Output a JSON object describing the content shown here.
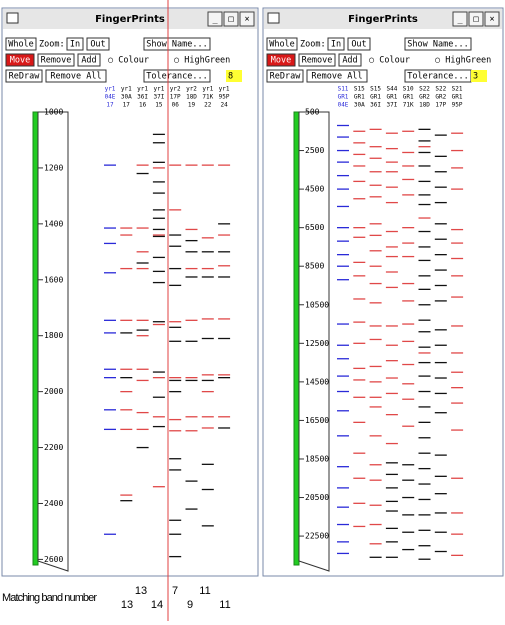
{
  "windows": [
    {
      "title": "FingerPrints",
      "title_buttons": [
        "_",
        "□",
        "×"
      ],
      "toolbar": {
        "whole": "Whole",
        "zoom": "Zoom:",
        "in": "In",
        "out": "Out",
        "show_name": "Show Name...",
        "move": "Move",
        "remove": "Remove",
        "add": "Add",
        "colour": "○ Colour",
        "highgreen": "○ HighGreen",
        "redraw": "ReDraw",
        "remove_all": "Remove All",
        "tolerance": "Tolerance...",
        "tolerance_value": "8"
      },
      "scale": {
        "lim": [
          1000,
          2620
        ],
        "ticks": [
          1000,
          1200,
          1400,
          1600,
          1800,
          2000,
          2200,
          2400,
          2600
        ]
      },
      "lanes": [
        {
          "header": [
            "yr1",
            "04E",
            "17"
          ],
          "blue": [
            1190,
            1415,
            1470,
            1575,
            1745,
            1790,
            1920,
            1950,
            2065,
            2135,
            2510
          ],
          "red": [],
          "black": []
        },
        {
          "header": [
            "yr1",
            "30A",
            "17"
          ],
          "blue": [],
          "red": [
            1415,
            1440,
            1560,
            1745,
            1920,
            2000,
            2065,
            2135,
            2370
          ],
          "black": [
            1790,
            1950,
            2390
          ]
        },
        {
          "header": [
            "yr1",
            "36I",
            "16"
          ],
          "blue": [],
          "red": [
            1190,
            1415,
            1500,
            1560,
            1745,
            1800,
            1920,
            1960,
            2075,
            2135
          ],
          "black": [
            1220,
            1540,
            1780,
            2200
          ]
        },
        {
          "header": [
            "yr1",
            "37I",
            "15"
          ],
          "blue": [],
          "red": [
            1200,
            1440,
            1760,
            1950,
            2090,
            2340
          ],
          "black": [
            1080,
            1110,
            1180,
            1250,
            1290,
            1350,
            1380,
            1420,
            1445,
            1520,
            1570,
            1610,
            1750,
            1930,
            2020,
            2125
          ]
        },
        {
          "header": [
            "yr2",
            "17P",
            "06"
          ],
          "blue": [],
          "red": [
            1190,
            1350,
            1750,
            1950,
            2100,
            2140
          ],
          "black": [
            1440,
            1480,
            1560,
            1620,
            1770,
            1820,
            1960,
            2000,
            2240,
            2280,
            2460,
            2510,
            2590
          ]
        },
        {
          "header": [
            "yr2",
            "18D",
            "19"
          ],
          "blue": [],
          "red": [
            1190,
            1420,
            1560,
            1745,
            1950,
            2090,
            2140
          ],
          "black": [
            1460,
            1500,
            1590,
            1820,
            1960,
            2320,
            2420
          ]
        },
        {
          "header": [
            "yr1",
            "71K",
            "22"
          ],
          "blue": [],
          "red": [
            1190,
            1450,
            1560,
            1740,
            1940,
            2000,
            2090,
            2130
          ],
          "black": [
            1500,
            1590,
            1810,
            1960,
            2260,
            2350,
            2480
          ]
        },
        {
          "header": [
            "yr1",
            "95P",
            "24"
          ],
          "blue": [],
          "red": [
            1190,
            1440,
            1550,
            1740,
            1940,
            2090
          ],
          "black": [
            1400,
            1500,
            1590,
            1810,
            1950,
            2130
          ]
        }
      ]
    },
    {
      "title": "FingerPrints",
      "title_buttons": [
        "_",
        "□",
        "×"
      ],
      "toolbar": {
        "whole": "Whole",
        "zoom": "Zoom:",
        "in": "In",
        "out": "Out",
        "show_name": "Show Name...",
        "move": "Move",
        "remove": "Remove",
        "add": "Add",
        "colour": "○ Colour",
        "highgreen": "○ HighGreen",
        "redraw": "ReDraw",
        "remove_all": "Remove All",
        "tolerance": "Tolerance...",
        "tolerance_value": "3"
      },
      "scale": {
        "lim": [
          500,
          24000
        ],
        "ticks": [
          500,
          2500,
          4500,
          6500,
          8500,
          10500,
          12500,
          14500,
          16500,
          18500,
          20500,
          22500
        ]
      },
      "lanes": [
        {
          "header": [
            "S11",
            "GR1",
            "04E"
          ],
          "blue": [
            1200,
            1800,
            2500,
            3100,
            3800,
            4500,
            5400,
            6500,
            7200,
            7900,
            8500,
            9200,
            11500,
            12600,
            13300,
            14200,
            15000,
            16000,
            17300,
            18900,
            20000,
            21000,
            21900,
            22800,
            23400
          ],
          "red": [],
          "black": []
        },
        {
          "header": [
            "S15",
            "GR1",
            "30A"
          ],
          "blue": [],
          "red": [
            1500,
            2100,
            2700,
            3300,
            4100,
            5000,
            6500,
            7000,
            8300,
            9000,
            10200,
            11400,
            12500,
            13800,
            14400,
            15300,
            16600,
            18200,
            19500,
            20800,
            22000
          ],
          "black": []
        },
        {
          "header": [
            "S15",
            "GR1",
            "36I"
          ],
          "blue": [],
          "red": [
            1400,
            2300,
            2900,
            3600,
            4300,
            4900,
            6300,
            6900,
            7700,
            8500,
            9400,
            10400,
            11600,
            12300,
            13700,
            14500,
            15300,
            15800,
            17300,
            18800,
            19600,
            20900,
            21900,
            22900
          ],
          "black": [
            23600
          ]
        },
        {
          "header": [
            "S44",
            "GR1",
            "37I"
          ],
          "blue": [],
          "red": [
            1600,
            2400,
            3100,
            3600,
            4400,
            5200,
            6700,
            7500,
            8000,
            8800,
            9600,
            11600,
            12600,
            13400,
            14300,
            15100,
            16200,
            17700
          ],
          "black": [
            18700,
            19300,
            20000,
            20700,
            21200,
            22100,
            22800,
            23600
          ]
        },
        {
          "header": [
            "S10",
            "GR1",
            "71K"
          ],
          "blue": [],
          "red": [
            1500,
            2600,
            3300,
            4000,
            4800,
            6500,
            7300,
            8000,
            9400,
            10300,
            11500,
            12400,
            13600,
            14600,
            15400,
            16800
          ],
          "black": [
            18800,
            19600,
            20500,
            21400,
            22300,
            23200
          ]
        },
        {
          "header": [
            "S22",
            "GR2",
            "18D"
          ],
          "blue": [],
          "red": [
            2300,
            6000,
            13000
          ],
          "black": [
            1400,
            2000,
            2600,
            3300,
            4100,
            4800,
            5300,
            6700,
            7500,
            8200,
            9000,
            9700,
            10500,
            11300,
            11900,
            12700,
            13500,
            14200,
            15000,
            15800,
            16600,
            17400,
            18200,
            19000,
            19800,
            20600,
            21400,
            22200,
            23000,
            23700
          ]
        },
        {
          "header": [
            "S22",
            "GR2",
            "17P"
          ],
          "blue": [],
          "red": [],
          "black": [
            1700,
            2800,
            3600,
            4400,
            5200,
            6300,
            7100,
            7900,
            8700,
            9500,
            10300,
            11800,
            12600,
            13500,
            14300,
            15100,
            16100,
            18300,
            19400,
            20300,
            21300,
            22300,
            23300
          ]
        },
        {
          "header": [
            "S21",
            "GR1",
            "95P"
          ],
          "blue": [],
          "red": [
            1600,
            2500,
            3400,
            4500,
            6600,
            7300,
            8100,
            9000,
            10100,
            11600,
            13000,
            14000,
            14800,
            15600,
            17000,
            19500,
            21300,
            22400,
            23500
          ],
          "black": []
        }
      ]
    }
  ],
  "band_colors": {
    "blue": "#2a2ad8",
    "red": "#e04848",
    "black": "#111111"
  },
  "matching": {
    "label": "Matching band number",
    "numbers": [
      "13",
      "13",
      "14",
      "7",
      "9",
      "11",
      "11"
    ]
  }
}
